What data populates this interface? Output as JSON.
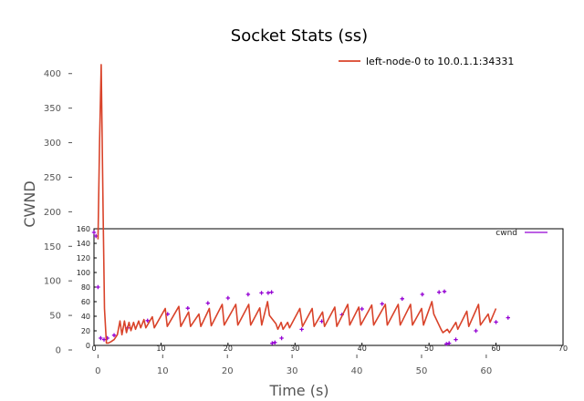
{
  "chart_data": [
    {
      "type": "line",
      "title": "Socket Stats (ss)",
      "xlabel": "Time (s)",
      "ylabel": "CWND",
      "xlim": [
        -4,
        72
      ],
      "ylim": [
        0,
        430
      ],
      "xticks": [
        0,
        10,
        20,
        30,
        40,
        50,
        60
      ],
      "yticks": [
        0,
        50,
        100,
        150,
        200,
        250,
        300,
        350,
        400
      ],
      "xtick_labels": [
        "0",
        "10",
        "20",
        "30",
        "40",
        "50",
        "60"
      ],
      "ytick_labels": [
        "0",
        "50",
        "100",
        "150",
        "200",
        "250",
        "300",
        "350",
        "400"
      ],
      "grid": false,
      "legend_position": "top-right",
      "series": [
        {
          "name": "left-node-0 to 10.0.1.1:34331",
          "color": "#d9432a",
          "x": [
            0,
            0.25,
            0.5,
            0.8,
            1.0,
            1.3,
            1.6,
            2.0,
            2.5,
            3.0,
            3.4,
            3.7,
            4.1,
            4.4,
            4.8,
            5.1,
            5.5,
            5.8,
            6.3,
            6.6,
            7.1,
            7.4,
            8.4,
            8.7,
            10.4,
            10.7,
            12.5,
            12.8,
            14.0,
            14.3,
            15.6,
            15.9,
            17.2,
            17.5,
            19.2,
            19.5,
            21.3,
            21.6,
            23.3,
            23.6,
            25.0,
            25.3,
            26.2,
            26.5,
            27.5,
            27.8,
            28.3,
            28.6,
            29.3,
            29.6,
            31.2,
            31.6,
            33.1,
            33.4,
            34.7,
            35.0,
            36.6,
            36.9,
            38.6,
            38.9,
            40.3,
            40.6,
            42.3,
            42.6,
            44.4,
            44.7,
            46.4,
            46.7,
            48.3,
            48.6,
            50.0,
            50.3,
            51.6,
            51.9,
            53.0,
            53.3,
            54.0,
            54.3,
            55.3,
            55.6,
            57.0,
            57.3,
            58.8,
            59.1,
            60.3,
            60.6,
            61.5
          ],
          "y": [
            160,
            300,
            413,
            200,
            60,
            10,
            10,
            12,
            15,
            22,
            42,
            22,
            42,
            25,
            40,
            28,
            40,
            30,
            42,
            32,
            44,
            32,
            48,
            32,
            60,
            34,
            63,
            34,
            55,
            34,
            52,
            34,
            60,
            35,
            66,
            36,
            66,
            36,
            66,
            36,
            61,
            36,
            70,
            50,
            38,
            30,
            40,
            30,
            40,
            32,
            60,
            34,
            60,
            34,
            55,
            34,
            62,
            34,
            66,
            36,
            62,
            36,
            65,
            36,
            66,
            36,
            66,
            36,
            66,
            36,
            60,
            36,
            70,
            52,
            30,
            25,
            30,
            25,
            40,
            30,
            56,
            34,
            66,
            36,
            52,
            40,
            60
          ]
        }
      ]
    },
    {
      "type": "scatter",
      "title": "",
      "xlabel": "",
      "ylabel": "",
      "xlim": [
        0,
        70
      ],
      "ylim": [
        0,
        160
      ],
      "xticks": [
        0,
        10,
        20,
        30,
        40,
        50,
        60,
        70
      ],
      "xtick_labels": [
        "0",
        "10",
        "20",
        "30",
        "40",
        "50",
        "60",
        "70"
      ],
      "yticks": [
        0,
        20,
        40,
        60,
        80,
        100,
        120,
        140,
        160
      ],
      "ytick_labels": [
        "0",
        "20",
        "40",
        "60",
        "80",
        "100",
        "120",
        "140",
        "160"
      ],
      "grid": false,
      "legend_position": "top-right",
      "series": [
        {
          "name": "cwnd",
          "color": "#9400d3",
          "x": [
            0,
            0.3,
            0.6,
            1.0,
            1.5,
            2.0,
            3.0,
            5.0,
            8.0,
            11.0,
            14.0,
            17.0,
            20.0,
            23.0,
            25.0,
            26.0,
            26.5,
            26.6,
            27.0,
            28.0,
            31.0,
            34.0,
            37.0,
            40.0,
            43.0,
            46.0,
            49.0,
            51.5,
            52.3,
            52.6,
            53.0,
            54.0,
            57.0,
            60.0,
            61.8
          ],
          "y": [
            155,
            150,
            80,
            10,
            8,
            10,
            14,
            24,
            34,
            43,
            51,
            58,
            65,
            70,
            72,
            72,
            73,
            3,
            4,
            10,
            22,
            33,
            42,
            50,
            57,
            64,
            70,
            73,
            74,
            2,
            3,
            8,
            20,
            32,
            38
          ]
        }
      ]
    }
  ]
}
